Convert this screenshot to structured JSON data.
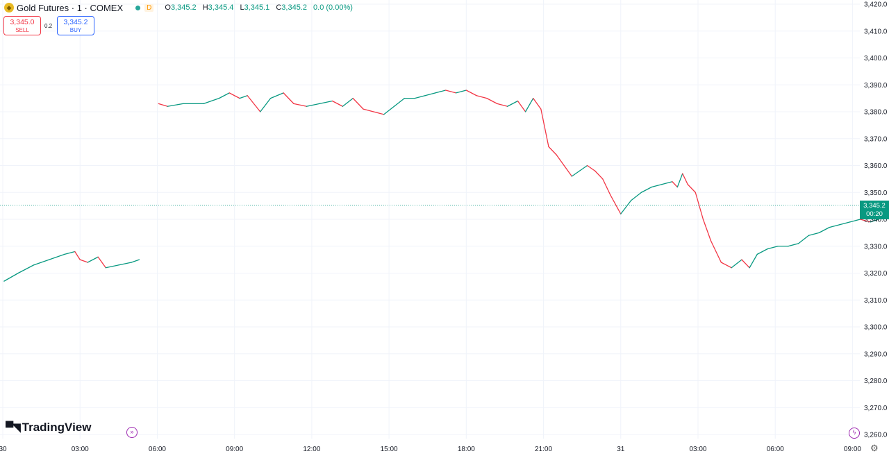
{
  "header": {
    "title": "Gold Futures · 1 · COMEX",
    "badge": "D",
    "ohlc": {
      "open_label": "O",
      "open": "3,345.2",
      "high_label": "H",
      "high": "3,345.4",
      "low_label": "L",
      "low": "3,345.1",
      "close_label": "C",
      "close": "3,345.2",
      "change": "0.0 (0.00%)"
    }
  },
  "trade": {
    "sell_price": "3,345.0",
    "sell_label": "SELL",
    "spread": "0.2",
    "buy_price": "3,345.2",
    "buy_label": "BUY"
  },
  "logo": {
    "text": "TradingView"
  },
  "last_price": {
    "price": "3,345.2",
    "countdown": "00:20"
  },
  "colors": {
    "up": "#089981",
    "down": "#f23645",
    "last": "#089981",
    "grid": "#f0f3fa"
  },
  "icons": [
    "gold-symbol-icon",
    "status-dot-icon",
    "go-to-realtime-icon",
    "lightning-icon",
    "gear-icon",
    "tradingview-logo-icon"
  ],
  "chart_data": {
    "type": "line",
    "ylim": [
      3258,
      3421
    ],
    "y_ticks": [
      "3,420.0",
      "3,410.0",
      "3,400.0",
      "3,390.0",
      "3,380.0",
      "3,370.0",
      "3,360.0",
      "3,350.0",
      "3,340.0",
      "3,330.0",
      "3,320.0",
      "3,310.0",
      "3,300.0",
      "3,290.0",
      "3,280.0",
      "3,270.0",
      "3,260.0"
    ],
    "y_tick_values": [
      3420,
      3410,
      3400,
      3390,
      3380,
      3370,
      3360,
      3350,
      3340,
      3330,
      3320,
      3310,
      3300,
      3290,
      3280,
      3270,
      3260
    ],
    "x_ticks": [
      "30",
      "03:00",
      "06:00",
      "09:00",
      "12:00",
      "15:00",
      "18:00",
      "21:00",
      "31",
      "03:00",
      "06:00",
      "09:00"
    ],
    "x_tick_hours": [
      0,
      3,
      6,
      9,
      12,
      15,
      18,
      21,
      24,
      27,
      30,
      33
    ],
    "x_unit": "hours since 30 00:00",
    "series": [
      {
        "x": [
          0.05,
          0.6,
          1.2,
          1.8,
          2.4,
          2.8,
          3.0,
          3.3,
          3.7,
          4.0,
          4.5,
          5.0,
          5.3
        ],
        "values": [
          3317,
          3320,
          3323,
          3325,
          3327,
          3328,
          3325,
          3324,
          3326,
          3322,
          3323,
          3324,
          3325
        ]
      },
      {
        "x": [
          6.05,
          6.4,
          7.0,
          7.8,
          8.4,
          8.8,
          9.2,
          9.5,
          10.0,
          10.4,
          10.9,
          11.3,
          11.8,
          12.3,
          12.8,
          13.2,
          13.6,
          14.0,
          14.4,
          14.8,
          15.2,
          15.6,
          16.0,
          16.4,
          16.8,
          17.2,
          17.6,
          18.0,
          18.4,
          18.8,
          19.2,
          19.6,
          20.0,
          20.3,
          20.6,
          20.9,
          21.2,
          21.5,
          21.8,
          22.1,
          22.4,
          22.7,
          23.0,
          23.3,
          23.6,
          24.0,
          24.4,
          24.8,
          25.2,
          25.6,
          26.0,
          26.2,
          26.4,
          26.6,
          26.9,
          27.2,
          27.5,
          27.9,
          28.3,
          28.7,
          29.0,
          29.3,
          29.7,
          30.1,
          30.5,
          30.9,
          31.3,
          31.7,
          32.1,
          32.5,
          32.9,
          33.3,
          33.7,
          34.0,
          34.3,
          34.55
        ],
        "values": [
          3383,
          3382,
          3383,
          3383,
          3385,
          3387,
          3385,
          3386,
          3380,
          3385,
          3387,
          3383,
          3382,
          3383,
          3384,
          3382,
          3385,
          3381,
          3380,
          3379,
          3382,
          3385,
          3385,
          3386,
          3387,
          3388,
          3387,
          3388,
          3386,
          3385,
          3383,
          3382,
          3384,
          3380,
          3385,
          3381,
          3367,
          3364,
          3360,
          3356,
          3358,
          3360,
          3358,
          3355,
          3349,
          3342,
          3347,
          3350,
          3352,
          3353,
          3354,
          3352,
          3357,
          3353,
          3350,
          3340,
          3332,
          3324,
          3322,
          3325,
          3322,
          3327,
          3329,
          3330,
          3330,
          3331,
          3334,
          3335,
          3337,
          3338,
          3339,
          3340,
          3339,
          3340,
          3341,
          3345
        ]
      }
    ],
    "last": 3345.2
  }
}
